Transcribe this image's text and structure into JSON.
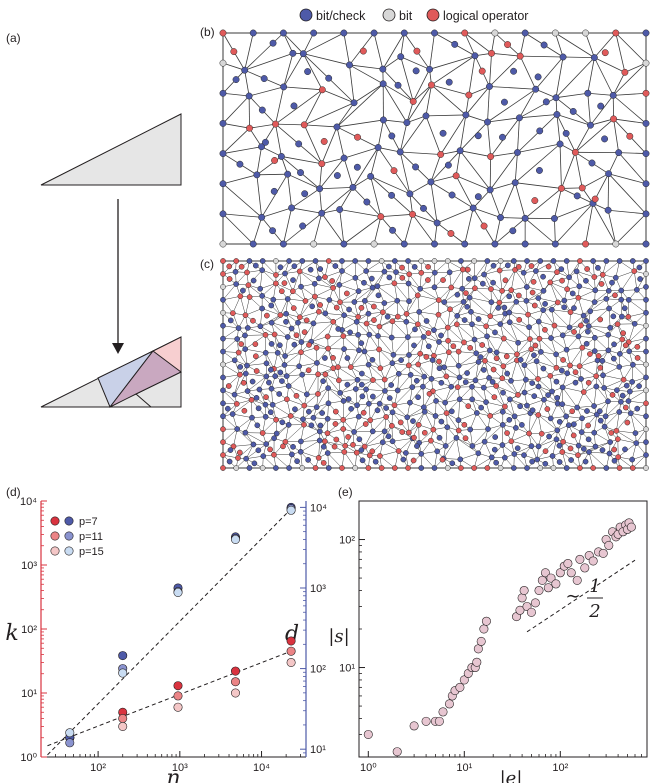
{
  "panels": {
    "a": "(a)",
    "b": "(b)",
    "c": "(c)",
    "d": "(d)",
    "e": "(e)"
  },
  "legend_top": [
    {
      "label": "bit/check",
      "color": "#4e5aa8"
    },
    {
      "label": "bit",
      "color": "#d7d7d7"
    },
    {
      "label": "logical operator",
      "color": "#e05a5a"
    }
  ],
  "colors": {
    "edge": "#3a3a3a",
    "axis_left": "#d9333f",
    "axis_right": "#4e5aa8",
    "tri_grey": "#e6e6e6",
    "tri_blue": "#c9d1e8",
    "tri_purple": "#c9a8c0",
    "tri_pink": "#f7cfd0"
  },
  "chart_data": [
    {
      "panel": "d",
      "type": "scatter",
      "xscale": "log",
      "yscale_left": "log",
      "yscale_right": "log",
      "xlim": [
        20,
        35000
      ],
      "ylim_left": [
        1,
        10000
      ],
      "ylim_right": [
        8,
        12000
      ],
      "xlabel": "n",
      "ylabel_left": "k",
      "ylabel_right": "d",
      "xticks": [
        "10²",
        "10³",
        "10⁴"
      ],
      "yticks_left": [
        "10⁰",
        "10¹",
        "10²",
        "10³",
        "10⁴"
      ],
      "yticks_right": [
        "10¹",
        "10²",
        "10³",
        "10⁴"
      ],
      "legend": [
        "p=7",
        "p=11",
        "p=15"
      ],
      "legend_colors_k": [
        "#d9333f",
        "#eb8486",
        "#f4c7c7"
      ],
      "legend_colors_d": [
        "#4e5aa8",
        "#8a93cf",
        "#c9dcf2"
      ],
      "series": [
        {
          "name": "p=7",
          "metric": "k",
          "x": [
            45,
            200,
            950,
            4800,
            23000
          ],
          "y": [
            2,
            5,
            13,
            22,
            65
          ]
        },
        {
          "name": "p=11",
          "metric": "k",
          "x": [
            45,
            200,
            950,
            4800,
            23000
          ],
          "y": [
            2,
            4,
            9,
            15,
            45
          ]
        },
        {
          "name": "p=15",
          "metric": "k",
          "x": [
            45,
            200,
            950,
            4800,
            23000
          ],
          "y": [
            2,
            3,
            6,
            10,
            30
          ]
        },
        {
          "name": "p=7",
          "metric": "d",
          "x": [
            45,
            200,
            950,
            4800,
            23000
          ],
          "y": [
            14,
            145,
            1000,
            4300,
            10000
          ]
        },
        {
          "name": "p=11",
          "metric": "d",
          "x": [
            45,
            200,
            950,
            4800,
            23000
          ],
          "y": [
            12,
            100,
            900,
            4100,
            9600
          ]
        },
        {
          "name": "p=15",
          "metric": "d",
          "x": [
            45,
            200,
            950,
            4800,
            23000
          ],
          "y": [
            16,
            88,
            880,
            4000,
            9200
          ]
        }
      ],
      "fits": [
        {
          "axis": "left",
          "x": [
            24,
            24000
          ],
          "y": [
            1.5,
            46
          ]
        },
        {
          "axis": "right",
          "x": [
            24,
            24000
          ],
          "y": [
            8.5,
            10000
          ]
        }
      ]
    },
    {
      "panel": "e",
      "type": "scatter",
      "xscale": "log",
      "yscale": "log",
      "xlim": [
        0.8,
        800
      ],
      "ylim": [
        2,
        200
      ],
      "xlabel": "|e|",
      "ylabel": "|s|",
      "xticks": [
        "10⁰",
        "10¹",
        "10²"
      ],
      "yticks": [
        "10¹",
        "10²"
      ],
      "annotation": {
        "prefix": "∼",
        "numerator": "1",
        "denominator": "2"
      },
      "fit": {
        "x": [
          45,
          600
        ],
        "y": [
          19,
          69
        ]
      },
      "color": "#e7c6d1",
      "x": [
        1,
        2,
        3,
        4,
        5,
        5.5,
        6,
        7,
        7.5,
        8,
        9,
        10,
        11,
        12,
        13,
        13.5,
        14,
        15,
        16,
        17,
        35,
        38,
        40,
        42,
        45,
        50,
        55,
        60,
        65,
        70,
        75,
        80,
        90,
        100,
        110,
        120,
        130,
        150,
        160,
        180,
        200,
        220,
        250,
        280,
        300,
        320,
        350,
        380,
        400,
        420,
        450,
        480,
        500,
        520,
        550
      ],
      "y": [
        3,
        2.2,
        3.5,
        3.8,
        3.8,
        3.8,
        4.5,
        5.2,
        6,
        6.6,
        7,
        8,
        9,
        10,
        10,
        11,
        14,
        16,
        20,
        23,
        25,
        28,
        35,
        40,
        30,
        27,
        32,
        40,
        48,
        55,
        42,
        50,
        45,
        55,
        62,
        65,
        55,
        48,
        70,
        60,
        75,
        68,
        80,
        78,
        100,
        90,
        115,
        105,
        110,
        125,
        115,
        130,
        120,
        135,
        125
      ]
    }
  ]
}
